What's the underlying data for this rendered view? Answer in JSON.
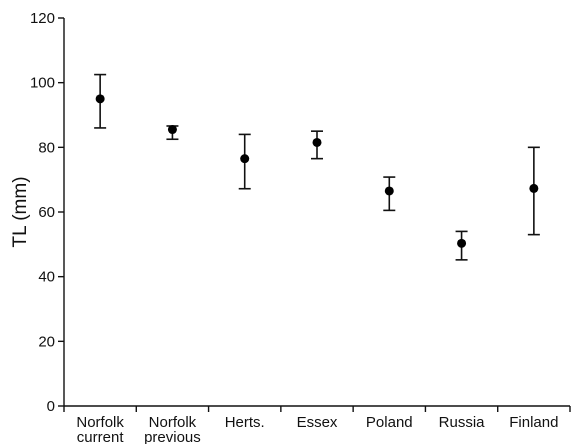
{
  "chart_data": {
    "type": "scatter",
    "title": "",
    "xlabel": "",
    "ylabel": "TL (mm)",
    "ylim": [
      0,
      120
    ],
    "yticks": [
      0,
      20,
      40,
      60,
      80,
      100,
      120
    ],
    "grid": false,
    "categories": [
      [
        "Norfolk",
        "current"
      ],
      [
        "Norfolk",
        "previous"
      ],
      [
        "Herts."
      ],
      [
        "Essex"
      ],
      [
        "Poland"
      ],
      [
        "Russia"
      ],
      [
        "Finland"
      ]
    ],
    "series": [
      {
        "marker_color": "#000000",
        "values": [
          95,
          85.5,
          76.5,
          81.5,
          66.5,
          50.3,
          67.3
        ],
        "err_low": [
          86,
          82.5,
          67.2,
          76.5,
          60.5,
          45.2,
          53
        ],
        "err_high": [
          102.5,
          86.6,
          84,
          85,
          70.8,
          54,
          80
        ]
      }
    ]
  }
}
